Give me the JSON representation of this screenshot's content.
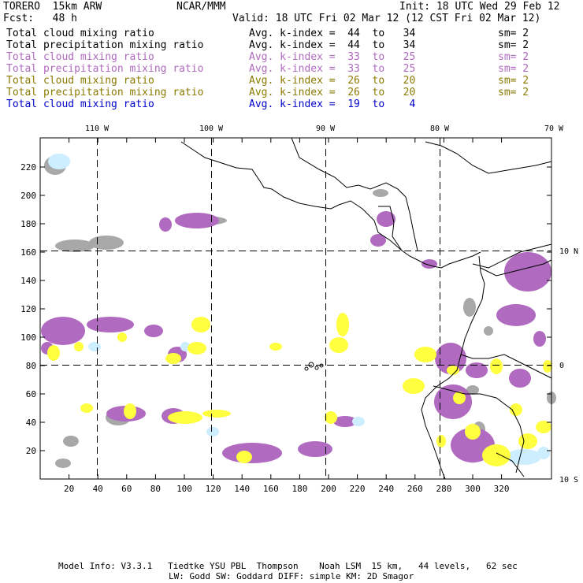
{
  "header": {
    "model": "TORERO  15km ARW",
    "org": "NCAR/MMM",
    "init": "Init: 18 UTC Wed 29 Feb 12",
    "fcst": "Fcst:   48 h",
    "valid": "Valid: 18 UTC Fri 02 Mar 12 (12 CST Fri 02 Mar 12)"
  },
  "legend": [
    {
      "field": "Total cloud mixing ratio",
      "index": "Avg. k-index =  44  to   34",
      "sm": "sm= 2",
      "color": "#000000"
    },
    {
      "field": "Total precipitation mixing ratio",
      "index": "Avg. k-index =  44  to   34",
      "sm": "sm= 2",
      "color": "#000000"
    },
    {
      "field": "Total cloud mixing ratio",
      "index": "Avg. k-index =  33  to   25",
      "sm": "sm= 2",
      "color": "#b06ac0"
    },
    {
      "field": "Total precipitation mixing ratio",
      "index": "Avg. k-index =  33  to   25",
      "sm": "sm= 2",
      "color": "#b06ac0"
    },
    {
      "field": "Total cloud mixing ratio",
      "index": "Avg. k-index =  26  to   20",
      "sm": "sm= 2",
      "color": "#8a7a00"
    },
    {
      "field": "Total precipitation mixing ratio",
      "index": "Avg. k-index =  26  to   20",
      "sm": "sm= 2",
      "color": "#8a7a00"
    },
    {
      "field": "Total cloud mixing ratio",
      "index": "Avg. k-index =  19  to    4",
      "sm": "",
      "color": "#0000cc"
    }
  ],
  "axes": {
    "top_lon_labels": [
      "110 W",
      "100 W",
      "90 W",
      "80 W",
      "70 W"
    ],
    "right_lat_labels": [
      "10 N",
      "0",
      "10 S"
    ],
    "y_ticks": [
      "220",
      "200",
      "180",
      "160",
      "140",
      "120",
      "100",
      "80",
      "60",
      "40",
      "20"
    ],
    "x_ticks": [
      "20",
      "40",
      "60",
      "80",
      "100",
      "120",
      "140",
      "160",
      "180",
      "200",
      "220",
      "240",
      "260",
      "280",
      "300",
      "320"
    ]
  },
  "footer": {
    "line1": "Model Info: V3.3.1   Tiedtke YSU PBL  Thompson    Noah LSM  15 km,   44 levels,   62 sec",
    "line2": "LW: Godd SW: Goddard DIFF: simple KM: 2D Smagor"
  },
  "colors": {
    "gray": "#a8a8a8",
    "purple": "#b06ac0",
    "yellow": "#ffff40",
    "lightblue": "#cceeff",
    "frame": "#000000"
  }
}
